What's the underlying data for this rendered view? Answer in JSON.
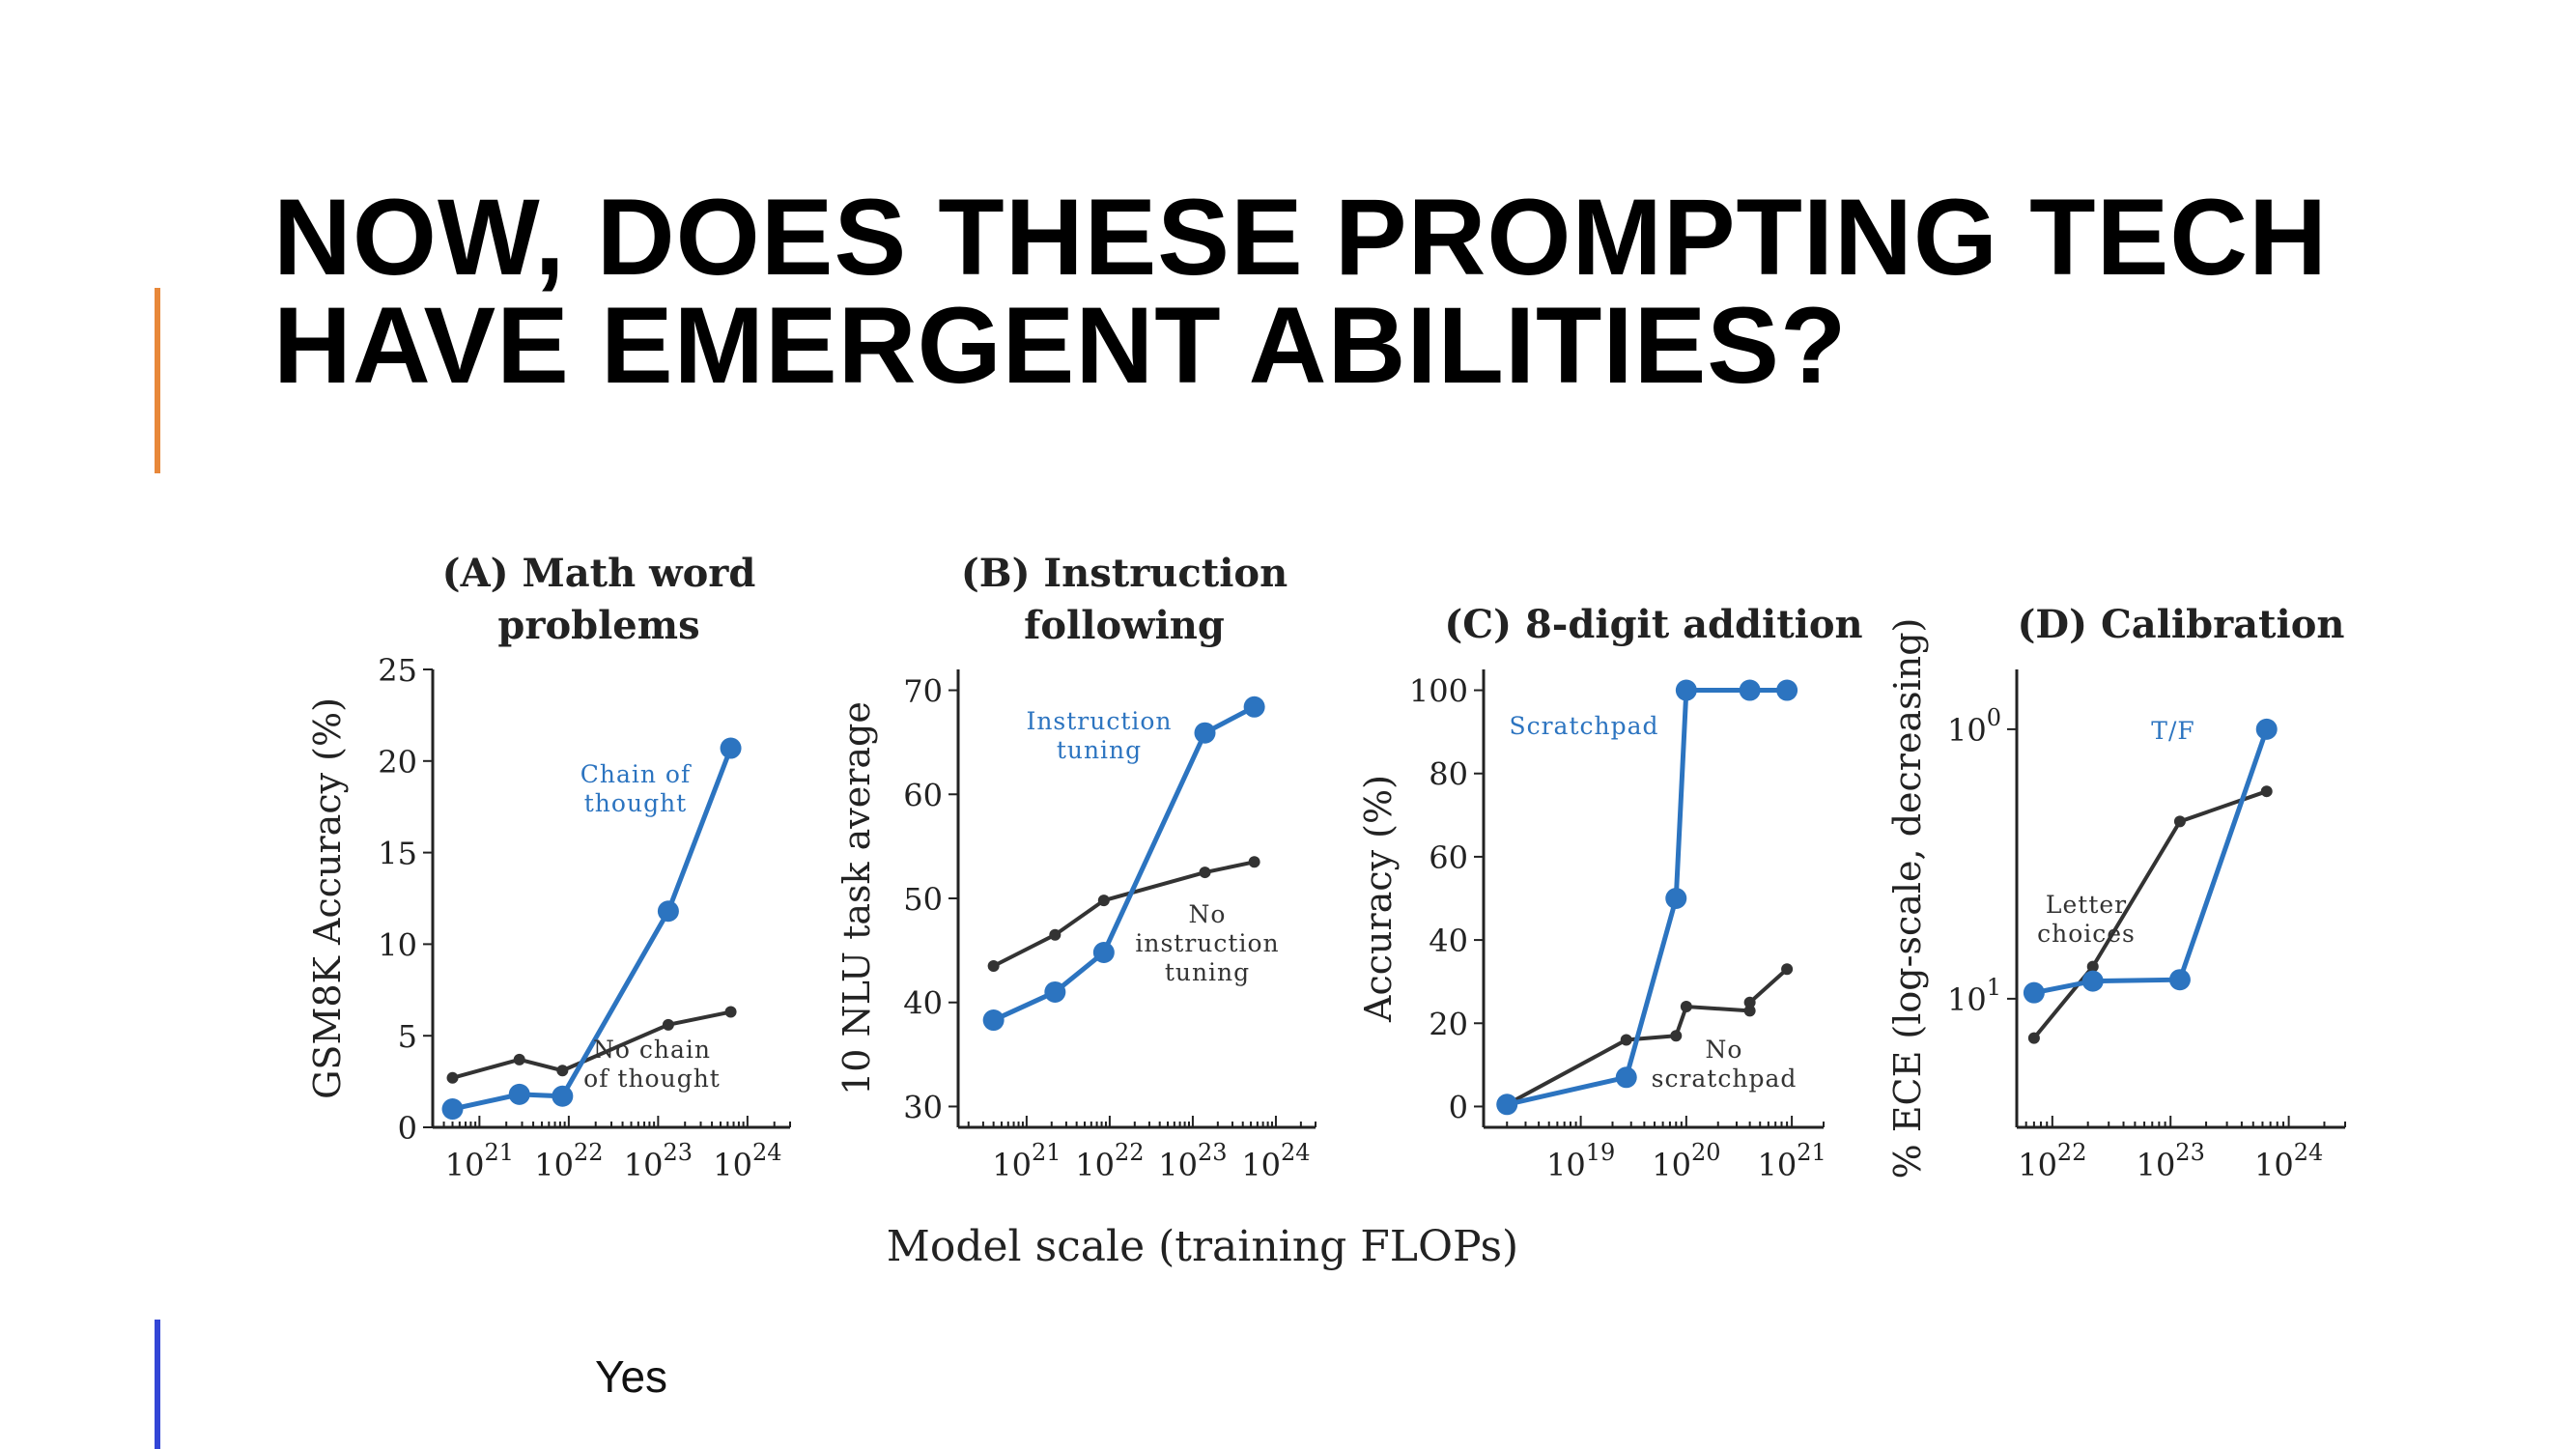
{
  "slide": {
    "title_line1": "NOW, DOES THESE PROMPTING TECH",
    "title_line2": "HAVE EMERGENT ABILITIES?",
    "answer": "Yes",
    "colors": {
      "accent_orange": "#e8883a",
      "accent_blue": "#3346d6",
      "series_blue": "#2c74c0",
      "series_dark": "#333333"
    }
  },
  "figure": {
    "xlabel_shared": "Model scale (training FLOPs)"
  },
  "chart_data": [
    {
      "type": "line",
      "title": "(A) Math word problems",
      "title_lines": [
        "(A) Math word",
        "problems"
      ],
      "xlabel": "",
      "ylabel": "GSM8K Accuracy (%)",
      "xscale": "log",
      "xlim": [
        3e+20,
        3e+24
      ],
      "ylim": [
        0,
        25
      ],
      "xticks": [
        1e+21,
        1e+22,
        1e+23,
        1e+24
      ],
      "xtick_labels": [
        {
          "base": "10",
          "exp": "21"
        },
        {
          "base": "10",
          "exp": "22"
        },
        {
          "base": "10",
          "exp": "23"
        },
        {
          "base": "10",
          "exp": "24"
        }
      ],
      "yticks": [
        0,
        5,
        10,
        15,
        20,
        25
      ],
      "ytick_labels": [
        "0",
        "5",
        "10",
        "15",
        "20",
        "25"
      ],
      "series": [
        {
          "name": "Chain of thought",
          "label_lines": [
            "Chain of",
            "thought"
          ],
          "color": "#2c74c0",
          "marker": "large",
          "x": [
            5e+20,
            2.8e+21,
            8.5e+21,
            1.3e+23,
            6.5e+23
          ],
          "y": [
            1.0,
            1.8,
            1.7,
            11.8,
            20.7
          ]
        },
        {
          "name": "No chain of thought",
          "label_lines": [
            "No chain",
            "of thought"
          ],
          "color": "#333333",
          "marker": "small",
          "x": [
            5e+20,
            2.8e+21,
            8.5e+21,
            1.3e+23,
            6.5e+23
          ],
          "y": [
            2.7,
            3.7,
            3.1,
            5.6,
            6.3
          ]
        }
      ]
    },
    {
      "type": "line",
      "title": "(B) Instruction following",
      "title_lines": [
        "(B) Instruction",
        "following"
      ],
      "xlabel": "",
      "ylabel": "10 NLU task average",
      "xscale": "log",
      "xlim": [
        1.5e+20,
        3e+24
      ],
      "ylim": [
        28,
        72
      ],
      "xticks": [
        1e+21,
        1e+22,
        1e+23,
        1e+24
      ],
      "xtick_labels": [
        {
          "base": "10",
          "exp": "21"
        },
        {
          "base": "10",
          "exp": "22"
        },
        {
          "base": "10",
          "exp": "23"
        },
        {
          "base": "10",
          "exp": "24"
        }
      ],
      "yticks": [
        30,
        40,
        50,
        60,
        70
      ],
      "ytick_labels": [
        "30",
        "40",
        "50",
        "60",
        "70"
      ],
      "series": [
        {
          "name": "Instruction tuning",
          "label_lines": [
            "Instruction",
            "tuning"
          ],
          "color": "#2c74c0",
          "marker": "large",
          "x": [
            4e+20,
            2.2e+21,
            8.5e+21,
            1.4e+23,
            5.5e+23
          ],
          "y": [
            38.3,
            41.0,
            44.8,
            65.9,
            68.4
          ]
        },
        {
          "name": "No instruction tuning",
          "label_lines": [
            "No",
            "instruction",
            "tuning"
          ],
          "color": "#333333",
          "marker": "small",
          "x": [
            4e+20,
            2.2e+21,
            8.5e+21,
            1.4e+23,
            5.5e+23
          ],
          "y": [
            43.5,
            46.5,
            49.8,
            52.5,
            53.5
          ]
        }
      ]
    },
    {
      "type": "line",
      "title": "(C) 8-digit addition",
      "title_lines": [
        "(C) 8-digit addition"
      ],
      "xlabel": "",
      "ylabel": "Accuracy (%)",
      "xscale": "log",
      "xlim": [
        1.2e+18,
        2e+21
      ],
      "ylim": [
        -5,
        105
      ],
      "xticks": [
        1e+19,
        1e+20,
        1e+21
      ],
      "xtick_labels": [
        {
          "base": "10",
          "exp": "19"
        },
        {
          "base": "10",
          "exp": "20"
        },
        {
          "base": "10",
          "exp": "21"
        }
      ],
      "yticks": [
        0,
        20,
        40,
        60,
        80,
        100
      ],
      "ytick_labels": [
        "0",
        "20",
        "40",
        "60",
        "80",
        "100"
      ],
      "series": [
        {
          "name": "Scratchpad",
          "label_lines": [
            "Scratchpad"
          ],
          "color": "#2c74c0",
          "marker": "large",
          "x": [
            2e+18,
            2.7e+19,
            8e+19,
            1e+20,
            4e+20,
            9e+20
          ],
          "y": [
            0.5,
            7,
            50,
            100,
            100,
            100
          ]
        },
        {
          "name": "No scratchpad",
          "label_lines": [
            "No",
            "scratchpad"
          ],
          "color": "#333333",
          "marker": "small",
          "x": [
            2e+18,
            2.7e+19,
            8e+19,
            1e+20,
            4e+20,
            4e+20,
            9e+20
          ],
          "y": [
            0.5,
            16,
            17,
            24,
            23,
            25,
            33
          ]
        }
      ]
    },
    {
      "type": "line",
      "title": "(D) Calibration",
      "title_lines": [
        "(D) Calibration"
      ],
      "xlabel": "",
      "ylabel": "% ECE (log-scale, decreasing)",
      "xscale": "log",
      "yscale": "log",
      "yinverted": true,
      "xlim": [
        5e+21,
        3e+24
      ],
      "ylim": [
        0.6,
        30
      ],
      "xticks": [
        1e+22,
        1e+23,
        1e+24
      ],
      "xtick_labels": [
        {
          "base": "10",
          "exp": "22"
        },
        {
          "base": "10",
          "exp": "23"
        },
        {
          "base": "10",
          "exp": "24"
        }
      ],
      "yticks": [
        1,
        10
      ],
      "ytick_labels": [
        {
          "base": "10",
          "exp": "0"
        },
        {
          "base": "10",
          "exp": "1"
        }
      ],
      "series": [
        {
          "name": "T/F",
          "label_lines": [
            "T/F"
          ],
          "color": "#2c74c0",
          "marker": "large",
          "x": [
            7e+21,
            2.2e+22,
            1.2e+23,
            6.5e+23
          ],
          "y": [
            9.5,
            8.6,
            8.5,
            1.0
          ]
        },
        {
          "name": "Letter choices",
          "label_lines": [
            "Letter",
            "choices"
          ],
          "color": "#333333",
          "marker": "small",
          "x": [
            7e+21,
            2.2e+22,
            1.2e+23,
            6.5e+23
          ],
          "y": [
            14,
            7.6,
            2.2,
            1.7
          ]
        }
      ]
    }
  ]
}
